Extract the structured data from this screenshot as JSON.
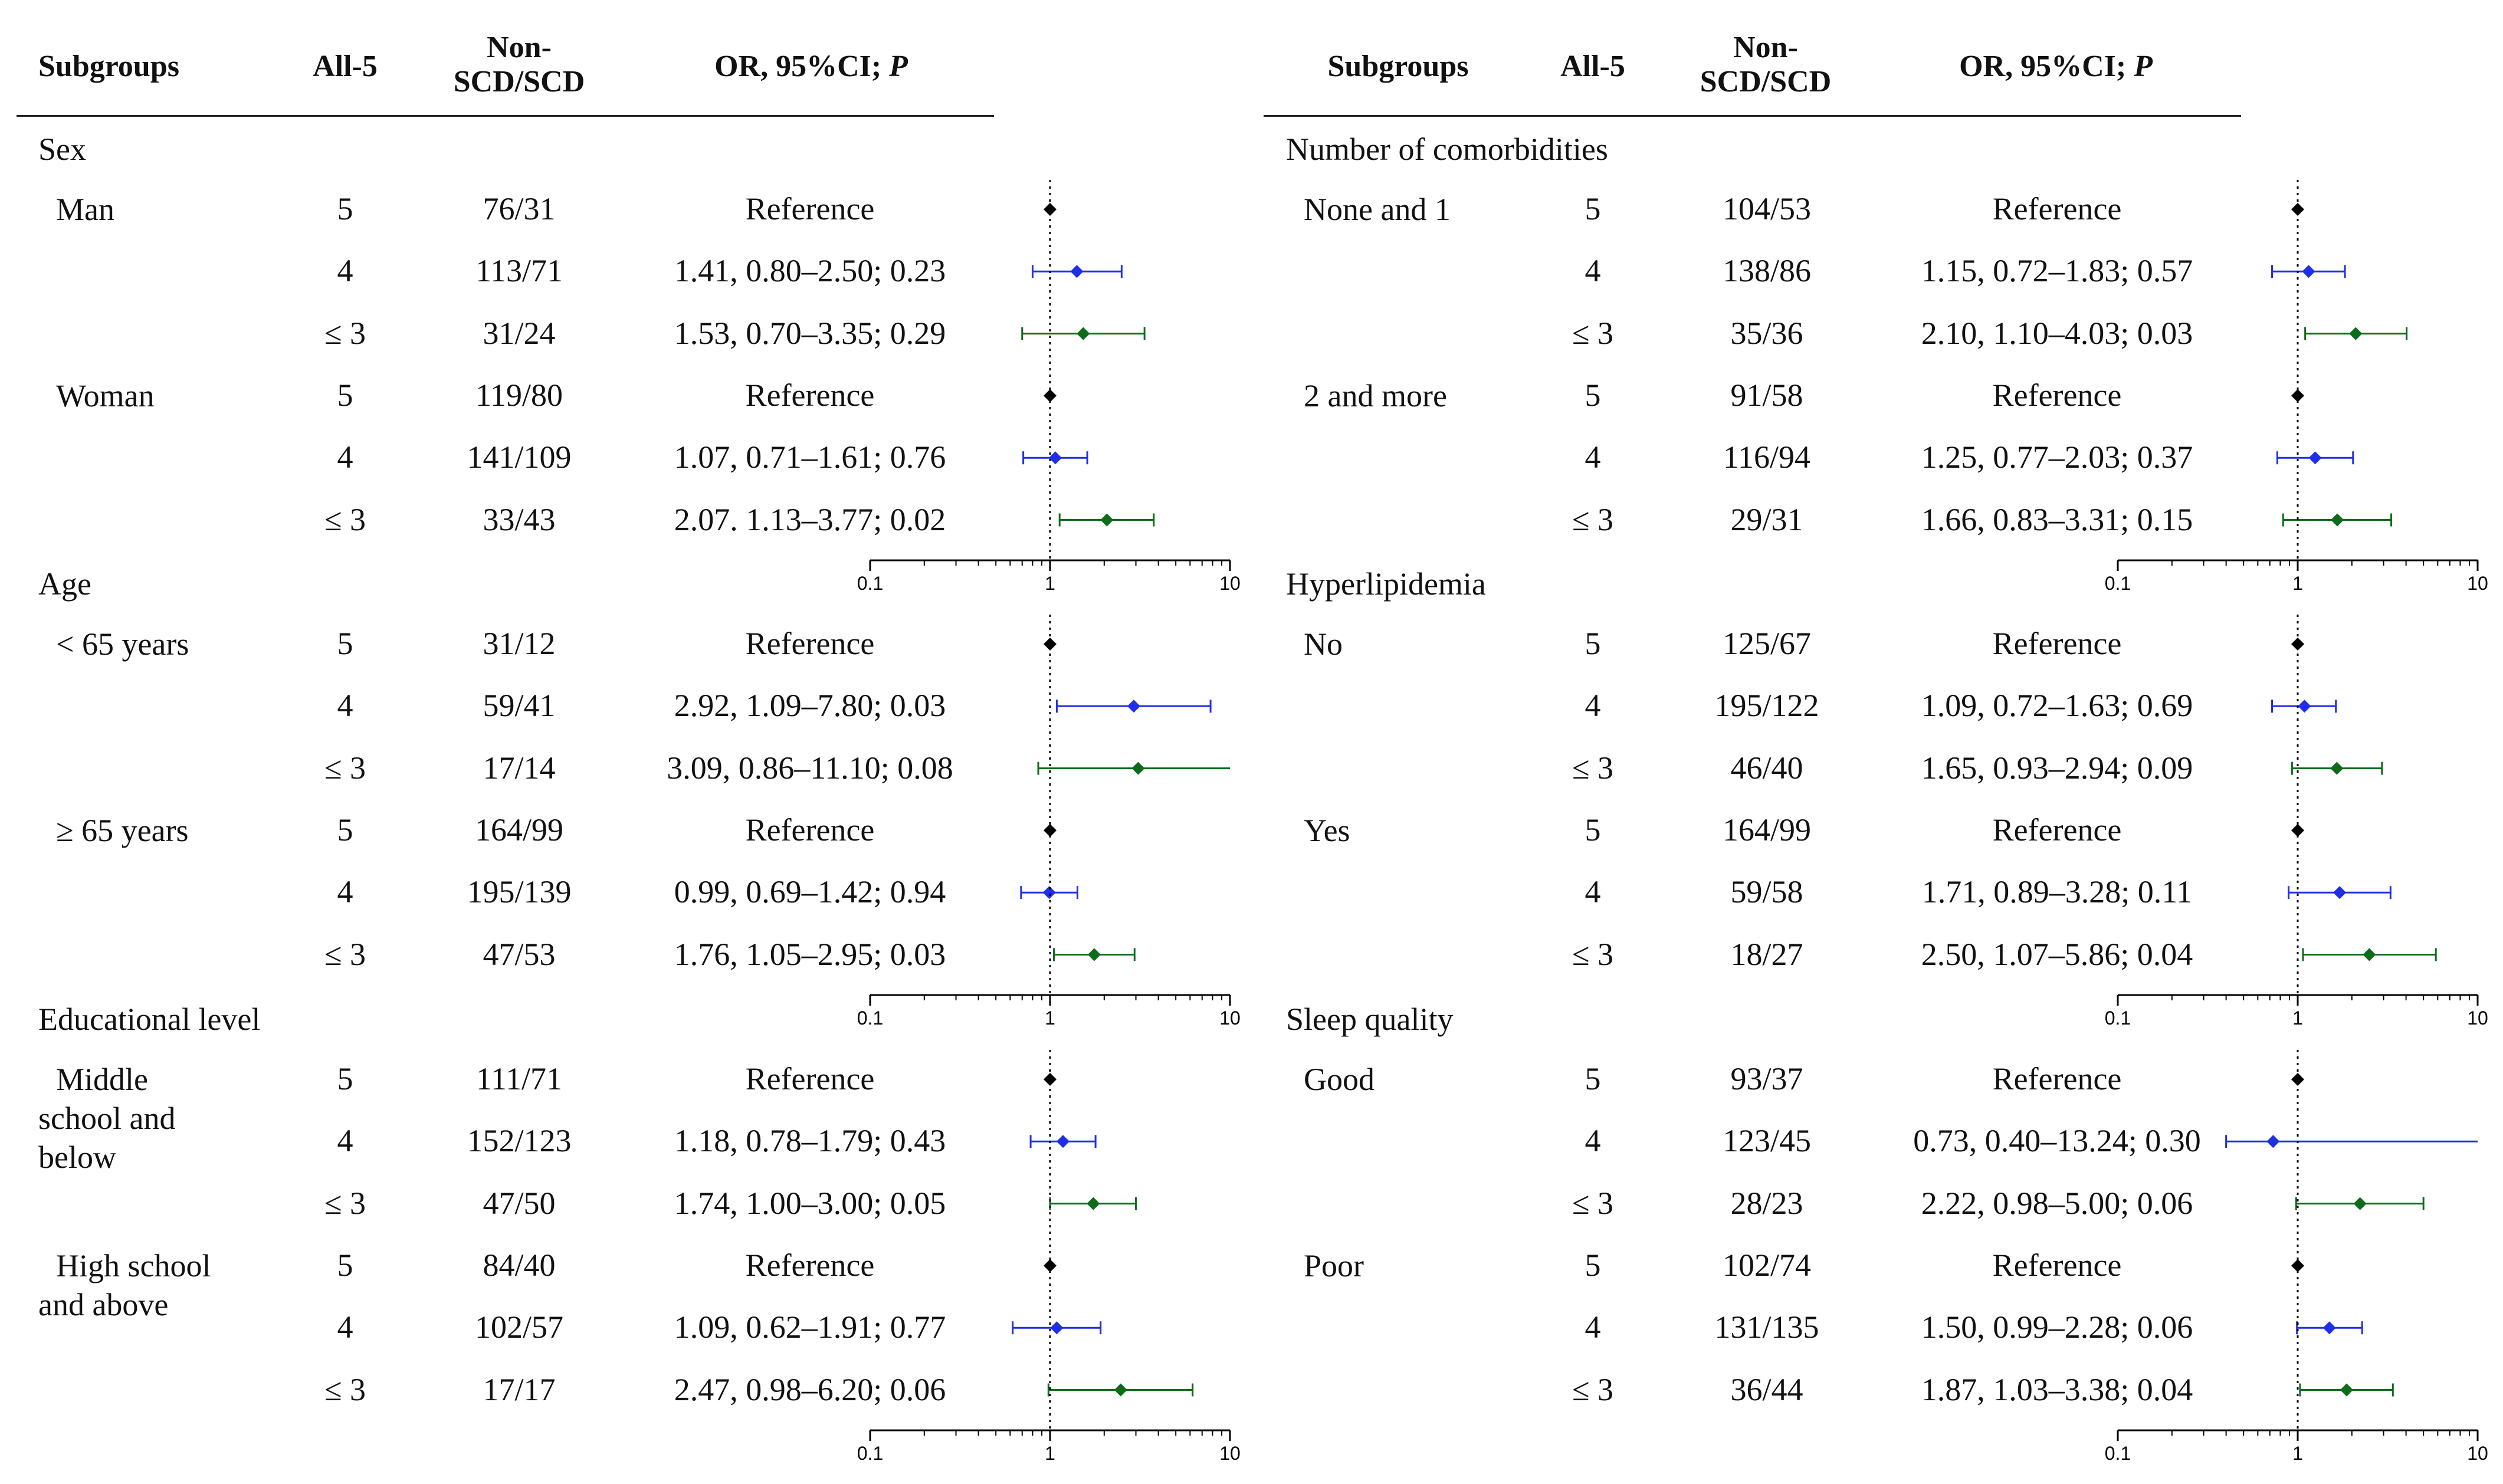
{
  "colors": {
    "reference": "#000000",
    "all4": "#1f2fe8",
    "le3": "#0d6b1a",
    "axis": "#000000"
  },
  "headers": {
    "subgroups": "Subgroups",
    "all5": "All-5",
    "nonscd_line1": "Non-",
    "nonscd_line2": "SCD/SCD",
    "or_text": "OR, 95%CI; ",
    "or_p": "P"
  },
  "axis_ticks": [
    "0.1",
    "1",
    "10"
  ],
  "chart_data": {
    "type": "forest",
    "x_scale": "log10",
    "xlim": [
      0.1,
      10
    ],
    "reference_line": 1,
    "columns": [
      "Subgroups",
      "All-5",
      "Non-SCD/SCD",
      "OR, 95%CI; P"
    ],
    "panels": [
      {
        "sections": [
          {
            "title": "Sex",
            "subgroups": [
              {
                "label": "Man",
                "rows": [
                  {
                    "all5": "5",
                    "counts": "76/31",
                    "text": "Reference",
                    "or": 1,
                    "ref": true
                  },
                  {
                    "all5": "4",
                    "counts": "113/71",
                    "text": "1.41, 0.80–2.50; 0.23",
                    "or": 1.41,
                    "lo": 0.8,
                    "hi": 2.5
                  },
                  {
                    "all5": "≤ 3",
                    "counts": "31/24",
                    "text": "1.53, 0.70–3.35; 0.29",
                    "or": 1.53,
                    "lo": 0.7,
                    "hi": 3.35
                  }
                ]
              },
              {
                "label": "Woman",
                "rows": [
                  {
                    "all5": "5",
                    "counts": "119/80",
                    "text": "Reference",
                    "or": 1,
                    "ref": true
                  },
                  {
                    "all5": "4",
                    "counts": "141/109",
                    "text": "1.07, 0.71–1.61; 0.76",
                    "or": 1.07,
                    "lo": 0.71,
                    "hi": 1.61
                  },
                  {
                    "all5": "≤ 3",
                    "counts": "33/43",
                    "text": "2.07. 1.13–3.77; 0.02",
                    "or": 2.07,
                    "lo": 1.13,
                    "hi": 3.77
                  }
                ]
              }
            ]
          },
          {
            "title": "Age",
            "subgroups": [
              {
                "label": "< 65 years",
                "rows": [
                  {
                    "all5": "5",
                    "counts": "31/12",
                    "text": "Reference",
                    "or": 1,
                    "ref": true
                  },
                  {
                    "all5": "4",
                    "counts": "59/41",
                    "text": "2.92, 1.09–7.80; 0.03",
                    "or": 2.92,
                    "lo": 1.09,
                    "hi": 7.8
                  },
                  {
                    "all5": "≤ 3",
                    "counts": "17/14",
                    "text": "3.09, 0.86–11.10; 0.08",
                    "or": 3.09,
                    "lo": 0.86,
                    "hi": 11.1
                  }
                ]
              },
              {
                "label": "≥ 65 years",
                "rows": [
                  {
                    "all5": "5",
                    "counts": "164/99",
                    "text": "Reference",
                    "or": 1,
                    "ref": true
                  },
                  {
                    "all5": "4",
                    "counts": "195/139",
                    "text": "0.99, 0.69–1.42; 0.94",
                    "or": 0.99,
                    "lo": 0.69,
                    "hi": 1.42
                  },
                  {
                    "all5": "≤ 3",
                    "counts": "47/53",
                    "text": "1.76, 1.05–2.95; 0.03",
                    "or": 1.76,
                    "lo": 1.05,
                    "hi": 2.95
                  }
                ]
              }
            ]
          },
          {
            "title": "Educational level",
            "subgroups": [
              {
                "label": "Middle\nschool and\nbelow",
                "rows": [
                  {
                    "all5": "5",
                    "counts": "111/71",
                    "text": "Reference",
                    "or": 1,
                    "ref": true
                  },
                  {
                    "all5": "4",
                    "counts": "152/123",
                    "text": "1.18, 0.78–1.79; 0.43",
                    "or": 1.18,
                    "lo": 0.78,
                    "hi": 1.79
                  },
                  {
                    "all5": "≤ 3",
                    "counts": "47/50",
                    "text": "1.74, 1.00–3.00; 0.05",
                    "or": 1.74,
                    "lo": 1.0,
                    "hi": 3.0
                  }
                ]
              },
              {
                "label": "High school\nand above",
                "rows": [
                  {
                    "all5": "5",
                    "counts": "84/40",
                    "text": "Reference",
                    "or": 1,
                    "ref": true
                  },
                  {
                    "all5": "4",
                    "counts": "102/57",
                    "text": "1.09, 0.62–1.91; 0.77",
                    "or": 1.09,
                    "lo": 0.62,
                    "hi": 1.91
                  },
                  {
                    "all5": "≤ 3",
                    "counts": "17/17",
                    "text": "2.47, 0.98–6.20; 0.06",
                    "or": 2.47,
                    "lo": 0.98,
                    "hi": 6.2
                  }
                ]
              }
            ]
          }
        ]
      },
      {
        "sections": [
          {
            "title": "Number of comorbidities",
            "subgroups": [
              {
                "label": "None and 1",
                "rows": [
                  {
                    "all5": "5",
                    "counts": "104/53",
                    "text": "Reference",
                    "or": 1,
                    "ref": true
                  },
                  {
                    "all5": "4",
                    "counts": "138/86",
                    "text": "1.15, 0.72–1.83; 0.57",
                    "or": 1.15,
                    "lo": 0.72,
                    "hi": 1.83
                  },
                  {
                    "all5": "≤ 3",
                    "counts": "35/36",
                    "text": "2.10, 1.10–4.03; 0.03",
                    "or": 2.1,
                    "lo": 1.1,
                    "hi": 4.03
                  }
                ]
              },
              {
                "label": "2 and more",
                "rows": [
                  {
                    "all5": "5",
                    "counts": "91/58",
                    "text": "Reference",
                    "or": 1,
                    "ref": true
                  },
                  {
                    "all5": "4",
                    "counts": "116/94",
                    "text": "1.25, 0.77–2.03; 0.37",
                    "or": 1.25,
                    "lo": 0.77,
                    "hi": 2.03
                  },
                  {
                    "all5": "≤ 3",
                    "counts": "29/31",
                    "text": "1.66, 0.83–3.31; 0.15",
                    "or": 1.66,
                    "lo": 0.83,
                    "hi": 3.31
                  }
                ]
              }
            ]
          },
          {
            "title": "Hyperlipidemia",
            "subgroups": [
              {
                "label": "No",
                "rows": [
                  {
                    "all5": "5",
                    "counts": "125/67",
                    "text": "Reference",
                    "or": 1,
                    "ref": true
                  },
                  {
                    "all5": "4",
                    "counts": "195/122",
                    "text": "1.09, 0.72–1.63; 0.69",
                    "or": 1.09,
                    "lo": 0.72,
                    "hi": 1.63
                  },
                  {
                    "all5": "≤ 3",
                    "counts": "46/40",
                    "text": "1.65, 0.93–2.94; 0.09",
                    "or": 1.65,
                    "lo": 0.93,
                    "hi": 2.94
                  }
                ]
              },
              {
                "label": "Yes",
                "rows": [
                  {
                    "all5": "5",
                    "counts": "164/99",
                    "text": "Reference",
                    "or": 1,
                    "ref": true
                  },
                  {
                    "all5": "4",
                    "counts": "59/58",
                    "text": "1.71, 0.89–3.28; 0.11",
                    "or": 1.71,
                    "lo": 0.89,
                    "hi": 3.28
                  },
                  {
                    "all5": "≤ 3",
                    "counts": "18/27",
                    "text": "2.50, 1.07–5.86; 0.04",
                    "or": 2.5,
                    "lo": 1.07,
                    "hi": 5.86
                  }
                ]
              }
            ]
          },
          {
            "title": "Sleep quality",
            "subgroups": [
              {
                "label": "Good",
                "rows": [
                  {
                    "all5": "5",
                    "counts": "93/37",
                    "text": "Reference",
                    "or": 1,
                    "ref": true
                  },
                  {
                    "all5": "4",
                    "counts": "123/45",
                    "text": "0.73, 0.40–13.24; 0.30",
                    "or": 0.73,
                    "lo": 0.4,
                    "hi": 13.24
                  },
                  {
                    "all5": "≤ 3",
                    "counts": "28/23",
                    "text": "2.22, 0.98–5.00; 0.06",
                    "or": 2.22,
                    "lo": 0.98,
                    "hi": 5.0
                  }
                ]
              },
              {
                "label": "Poor",
                "rows": [
                  {
                    "all5": "5",
                    "counts": "102/74",
                    "text": "Reference",
                    "or": 1,
                    "ref": true
                  },
                  {
                    "all5": "4",
                    "counts": "131/135",
                    "text": "1.50, 0.99–2.28; 0.06",
                    "or": 1.5,
                    "lo": 0.99,
                    "hi": 2.28
                  },
                  {
                    "all5": "≤ 3",
                    "counts": "36/44",
                    "text": "1.87, 1.03–3.38; 0.04",
                    "or": 1.87,
                    "lo": 1.03,
                    "hi": 3.38
                  }
                ]
              }
            ]
          }
        ]
      }
    ]
  }
}
